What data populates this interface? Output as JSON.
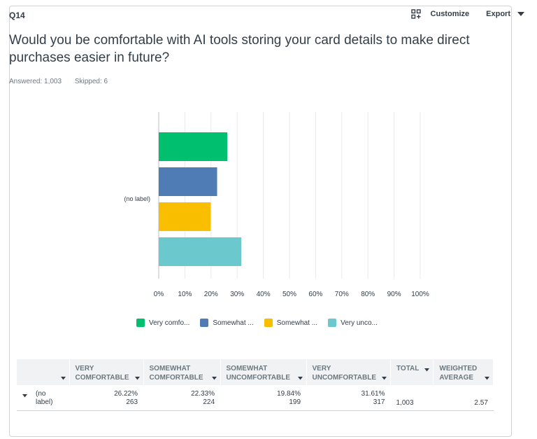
{
  "question": {
    "number": "Q14",
    "title": "Would you be comfortable with AI tools storing your card details to make direct purchases easier in future?",
    "answered": "Answered: 1,003",
    "skipped": "Skipped: 6"
  },
  "toolbar": {
    "customize_label": "Customize",
    "export_label": "Export",
    "customize_icon": "grid-plus-icon",
    "export_icon": "caret-down-icon"
  },
  "colors": {
    "very_comfortable": "#00bf6f",
    "somewhat_comfortable": "#507cb6",
    "somewhat_uncomfortable": "#f9be00",
    "very_uncomfortable": "#6bc8cd"
  },
  "chart_data": {
    "type": "bar",
    "orientation": "horizontal",
    "categories": [
      "(no label)"
    ],
    "series": [
      {
        "name": "Very comfo...",
        "values": [
          26.22
        ],
        "color": "#00bf6f"
      },
      {
        "name": "Somewhat ...",
        "values": [
          22.33
        ],
        "color": "#507cb6"
      },
      {
        "name": "Somewhat ...",
        "values": [
          19.84
        ],
        "color": "#f9be00"
      },
      {
        "name": "Very unco...",
        "values": [
          31.61
        ],
        "color": "#6bc8cd"
      }
    ],
    "x_ticks": [
      "0%",
      "10%",
      "20%",
      "30%",
      "40%",
      "50%",
      "60%",
      "70%",
      "80%",
      "90%",
      "100%"
    ],
    "xlim": [
      0,
      100
    ],
    "grid": true,
    "legend_position": "bottom"
  },
  "table": {
    "columns": [
      "VERY COMFORTABLE",
      "SOMEWHAT COMFORTABLE",
      "SOMEWHAT UNCOMFORTABLE",
      "VERY UNCOMFORTABLE",
      "TOTAL",
      "WEIGHTED AVERAGE"
    ],
    "rows": [
      {
        "label": "(no label)",
        "cells": [
          {
            "pct": "26.22%",
            "count": "263"
          },
          {
            "pct": "22.33%",
            "count": "224"
          },
          {
            "pct": "19.84%",
            "count": "199"
          },
          {
            "pct": "31.61%",
            "count": "317"
          }
        ],
        "total": "1,003",
        "weighted_average": "2.57"
      }
    ]
  }
}
